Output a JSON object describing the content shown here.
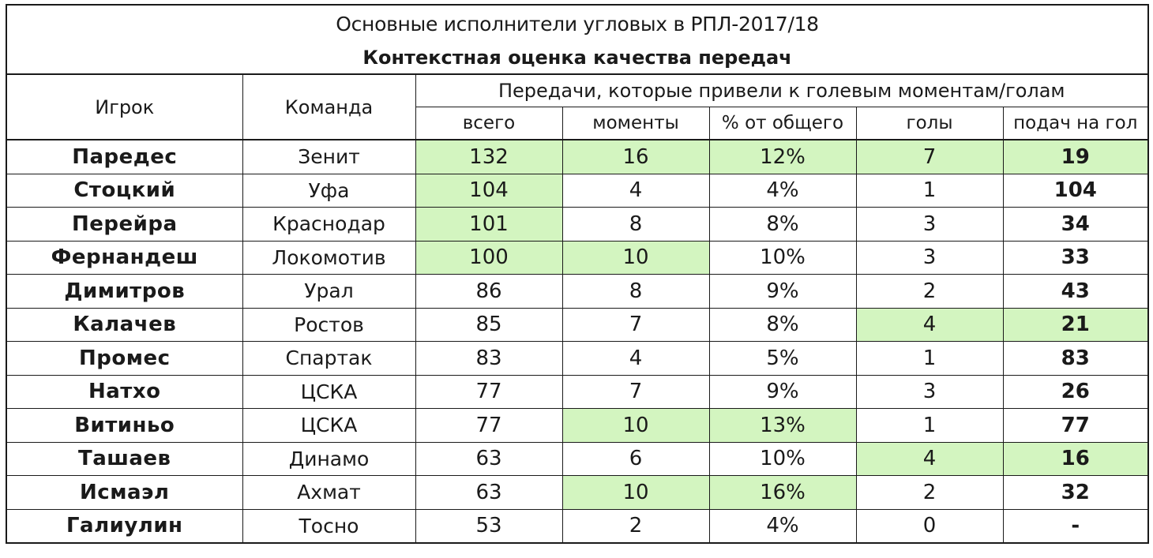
{
  "colors": {
    "highlight": "#d3f5c0",
    "border": "#1a1a1a"
  },
  "title": "Основные исполнители угловых в РПЛ-2017/18",
  "subtitle": "Контекстная оценка качества передач",
  "headers": {
    "player": "Игрок",
    "team": "Команда",
    "group": "Передачи, которые привели к голевым моментам/голам",
    "total": "всего",
    "chances": "моменты",
    "pct": "% от общего",
    "goals": "голы",
    "per_goal": "подач на гол"
  },
  "rows": [
    {
      "player": "Паредес",
      "team": "Зенит",
      "total": "132",
      "chances": "16",
      "pct": "12%",
      "goals": "7",
      "per_goal": "19",
      "hl": [
        "total",
        "chances",
        "pct",
        "goals",
        "per_goal"
      ]
    },
    {
      "player": "Стоцкий",
      "team": "Уфа",
      "total": "104",
      "chances": "4",
      "pct": "4%",
      "goals": "1",
      "per_goal": "104",
      "hl": [
        "total"
      ]
    },
    {
      "player": "Перейра",
      "team": "Краснодар",
      "total": "101",
      "chances": "8",
      "pct": "8%",
      "goals": "3",
      "per_goal": "34",
      "hl": [
        "total"
      ]
    },
    {
      "player": "Фернандеш",
      "team": "Локомотив",
      "total": "100",
      "chances": "10",
      "pct": "10%",
      "goals": "3",
      "per_goal": "33",
      "hl": [
        "total",
        "chances"
      ]
    },
    {
      "player": "Димитров",
      "team": "Урал",
      "total": "86",
      "chances": "8",
      "pct": "9%",
      "goals": "2",
      "per_goal": "43",
      "hl": []
    },
    {
      "player": "Калачев",
      "team": "Ростов",
      "total": "85",
      "chances": "7",
      "pct": "8%",
      "goals": "4",
      "per_goal": "21",
      "hl": [
        "goals",
        "per_goal"
      ]
    },
    {
      "player": "Промес",
      "team": "Спартак",
      "total": "83",
      "chances": "4",
      "pct": "5%",
      "goals": "1",
      "per_goal": "83",
      "hl": []
    },
    {
      "player": "Натхо",
      "team": "ЦСКА",
      "total": "77",
      "chances": "7",
      "pct": "9%",
      "goals": "3",
      "per_goal": "26",
      "hl": []
    },
    {
      "player": "Витиньо",
      "team": "ЦСКА",
      "total": "77",
      "chances": "10",
      "pct": "13%",
      "goals": "1",
      "per_goal": "77",
      "hl": [
        "chances",
        "pct"
      ]
    },
    {
      "player": "Ташаев",
      "team": "Динамо",
      "total": "63",
      "chances": "6",
      "pct": "10%",
      "goals": "4",
      "per_goal": "16",
      "hl": [
        "goals",
        "per_goal"
      ]
    },
    {
      "player": "Исмаэл",
      "team": "Ахмат",
      "total": "63",
      "chances": "10",
      "pct": "16%",
      "goals": "2",
      "per_goal": "32",
      "hl": [
        "chances",
        "pct"
      ]
    },
    {
      "player": "Галиулин",
      "team": "Тосно",
      "total": "53",
      "chances": "2",
      "pct": "4%",
      "goals": "0",
      "per_goal": "-",
      "hl": []
    }
  ]
}
